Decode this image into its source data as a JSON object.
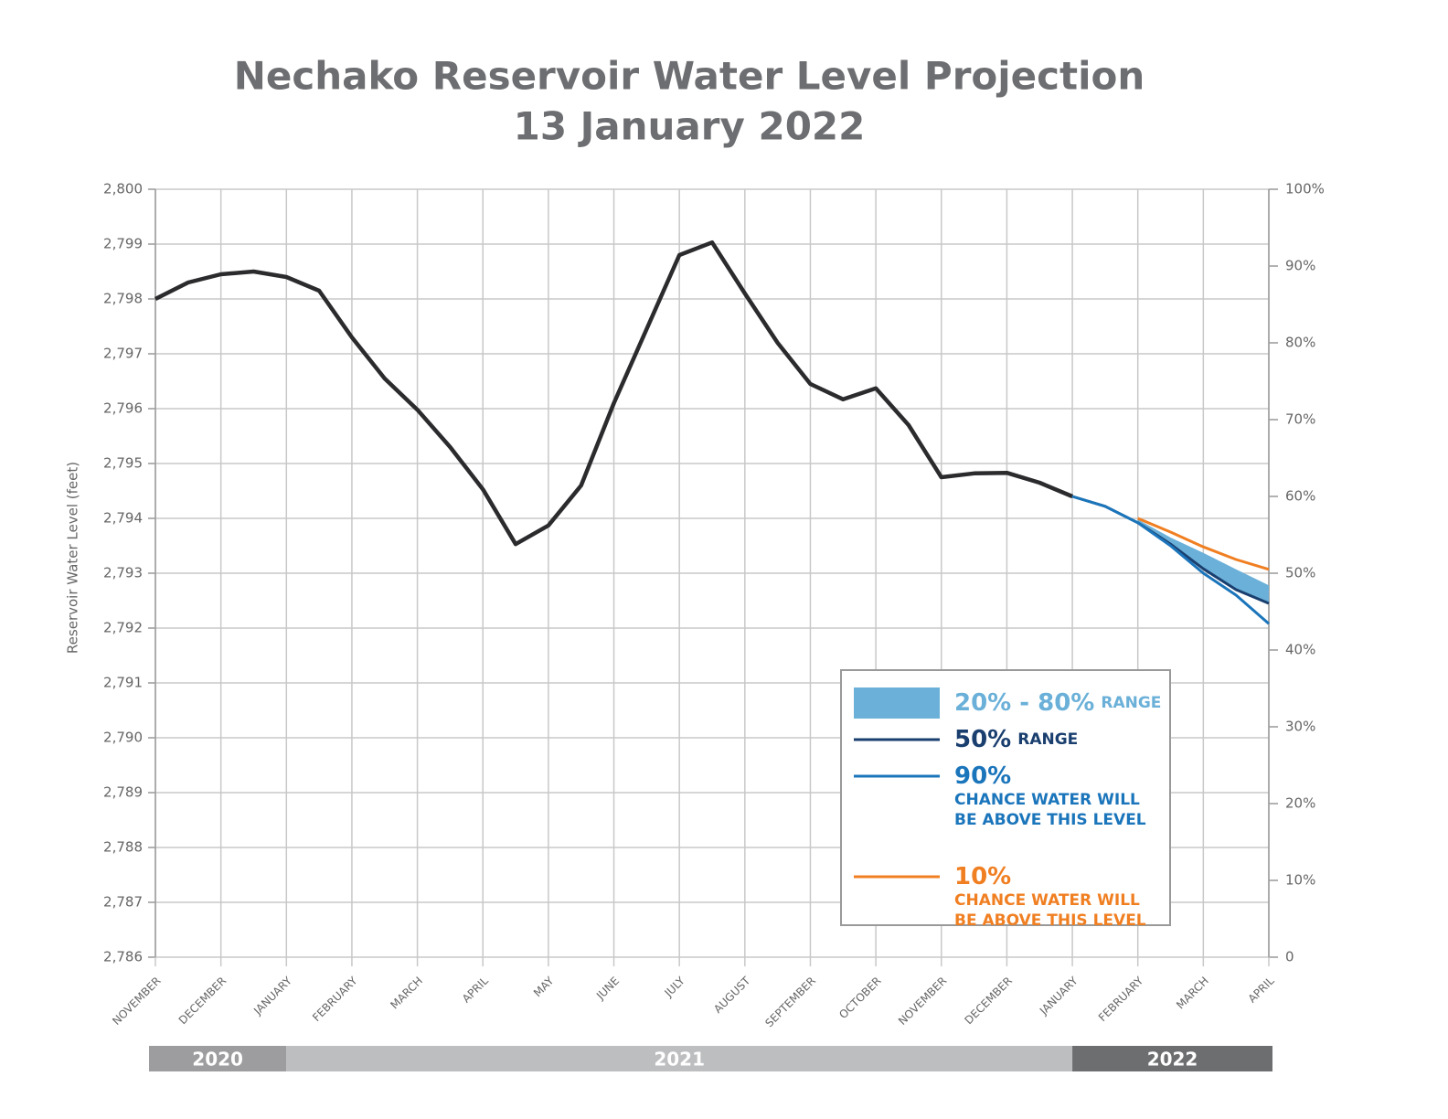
{
  "chart_data": {
    "type": "line",
    "title": [
      "Nechako Reservoir Water Level Projection",
      "13 January 2022"
    ],
    "y_label": "Reservoir Water Level (feet)",
    "categories": [
      "NOVEMBER",
      null,
      "DECEMBER",
      null,
      "JANUARY",
      null,
      "FEBRUARY",
      null,
      "MARCH",
      null,
      "APRIL",
      null,
      "MAY",
      null,
      "JUNE",
      null,
      "JULY",
      null,
      "AUGUST",
      null,
      "SEPTEMBER",
      null,
      "OCTOBER",
      null,
      "NOVEMBER",
      null,
      "DECEMBER",
      null,
      "JANUARY",
      null,
      "FEBRUARY",
      null,
      "MARCH",
      null,
      "APRIL"
    ],
    "years": [
      {
        "label": "2020",
        "color": "#9d9d9f"
      },
      {
        "label": "2021",
        "color": "#bdbec0"
      },
      {
        "label": "2022",
        "color": "#6d6e70"
      }
    ],
    "ylim": [
      2786,
      2800
    ],
    "yticks": [
      {
        "value": 2786,
        "label": "2,786"
      },
      {
        "value": 2787,
        "label": "2,787"
      },
      {
        "value": 2788,
        "label": "2,788"
      },
      {
        "value": 2789,
        "label": "2,789"
      },
      {
        "value": 2790,
        "label": "2,790"
      },
      {
        "value": 2791,
        "label": "2,791"
      },
      {
        "value": 2792,
        "label": "2,792"
      },
      {
        "value": 2793,
        "label": "2,793"
      },
      {
        "value": 2794,
        "label": "2,794"
      },
      {
        "value": 2795,
        "label": "2,795"
      },
      {
        "value": 2796,
        "label": "2,796"
      },
      {
        "value": 2797,
        "label": "2,797"
      },
      {
        "value": 2798,
        "label": "2,798"
      },
      {
        "value": 2799,
        "label": "2,799"
      },
      {
        "value": 2800,
        "label": "2,800"
      }
    ],
    "y2lim": [
      0,
      100
    ],
    "y2ticks": [
      0,
      {
        "value": 10,
        "label": "10%"
      },
      {
        "value": 20,
        "label": "20%"
      },
      {
        "value": 30,
        "label": "30%"
      },
      {
        "value": 40,
        "label": "40%"
      },
      {
        "value": 50,
        "label": "50%"
      },
      {
        "value": 60,
        "label": "60%"
      },
      {
        "value": 70,
        "label": "70%"
      },
      {
        "value": 80,
        "label": "80%"
      },
      {
        "value": 90,
        "label": "90%"
      },
      {
        "value": 100,
        "label": "100%"
      }
    ],
    "grid": true,
    "legend": "lower right",
    "series": [
      {
        "color": "#2b2b2e",
        "values": [
          2798.0,
          2798.3,
          2798.45,
          2798.5,
          2798.4,
          2798.15,
          2797.3,
          2796.55,
          2795.98,
          2795.3,
          2794.53,
          2793.53,
          2793.87,
          2794.6,
          2796.1,
          2797.45,
          2798.8,
          2799.03,
          2798.1,
          2797.2,
          2796.45,
          2796.17,
          2796.37,
          2795.7,
          2794.75,
          2794.82,
          2794.83,
          2794.65,
          2794.4,
          null,
          null,
          null,
          null,
          null,
          null
        ]
      },
      {
        "name": "20% - 80%",
        "legend_note": [
          "RANGE"
        ],
        "kind": "band",
        "color": "#6ab0d8",
        "values": [
          null,
          null,
          null,
          null,
          null,
          null,
          null,
          null,
          null,
          null,
          null,
          null,
          null,
          null,
          null,
          null,
          null,
          null,
          null,
          null,
          null,
          null,
          null,
          null,
          null,
          null,
          null,
          null,
          null,
          null,
          2793.98,
          2793.65,
          2793.37,
          2793.07,
          2792.78
        ],
        "lower": [
          null,
          null,
          null,
          null,
          null,
          null,
          null,
          null,
          null,
          null,
          null,
          null,
          null,
          null,
          null,
          null,
          null,
          null,
          null,
          null,
          null,
          null,
          null,
          null,
          null,
          null,
          null,
          null,
          null,
          null,
          2793.92,
          2793.55,
          2793.1,
          2792.72,
          2792.45
        ]
      },
      {
        "name": "50%",
        "legend_note": [
          "RANGE"
        ],
        "color": "#1a3f6f",
        "values": [
          null,
          null,
          null,
          null,
          null,
          null,
          null,
          null,
          null,
          null,
          null,
          null,
          null,
          null,
          null,
          null,
          null,
          null,
          null,
          null,
          null,
          null,
          null,
          null,
          null,
          null,
          null,
          null,
          2794.4,
          2794.22,
          2793.92,
          2793.53,
          2793.08,
          2792.7,
          2792.45
        ]
      },
      {
        "name": "90%",
        "legend_note": [
          "CHANCE WATER WILL",
          "BE ABOVE THIS LEVEL"
        ],
        "color": "#1b75bb",
        "values": [
          null,
          null,
          null,
          null,
          null,
          null,
          null,
          null,
          null,
          null,
          null,
          null,
          null,
          null,
          null,
          null,
          null,
          null,
          null,
          null,
          null,
          null,
          null,
          null,
          null,
          null,
          null,
          null,
          2794.4,
          2794.22,
          2793.92,
          2793.5,
          2793.0,
          2792.6,
          2792.08
        ]
      },
      {
        "name": "10%",
        "legend_note": [
          "CHANCE WATER WILL",
          "BE ABOVE THIS LEVEL"
        ],
        "color": "#f07f22",
        "values": [
          null,
          null,
          null,
          null,
          null,
          null,
          null,
          null,
          null,
          null,
          null,
          null,
          null,
          null,
          null,
          null,
          null,
          null,
          null,
          null,
          null,
          null,
          null,
          null,
          null,
          null,
          null,
          null,
          null,
          null,
          2794.0,
          2793.75,
          2793.48,
          2793.25,
          2793.07
        ]
      }
    ]
  }
}
